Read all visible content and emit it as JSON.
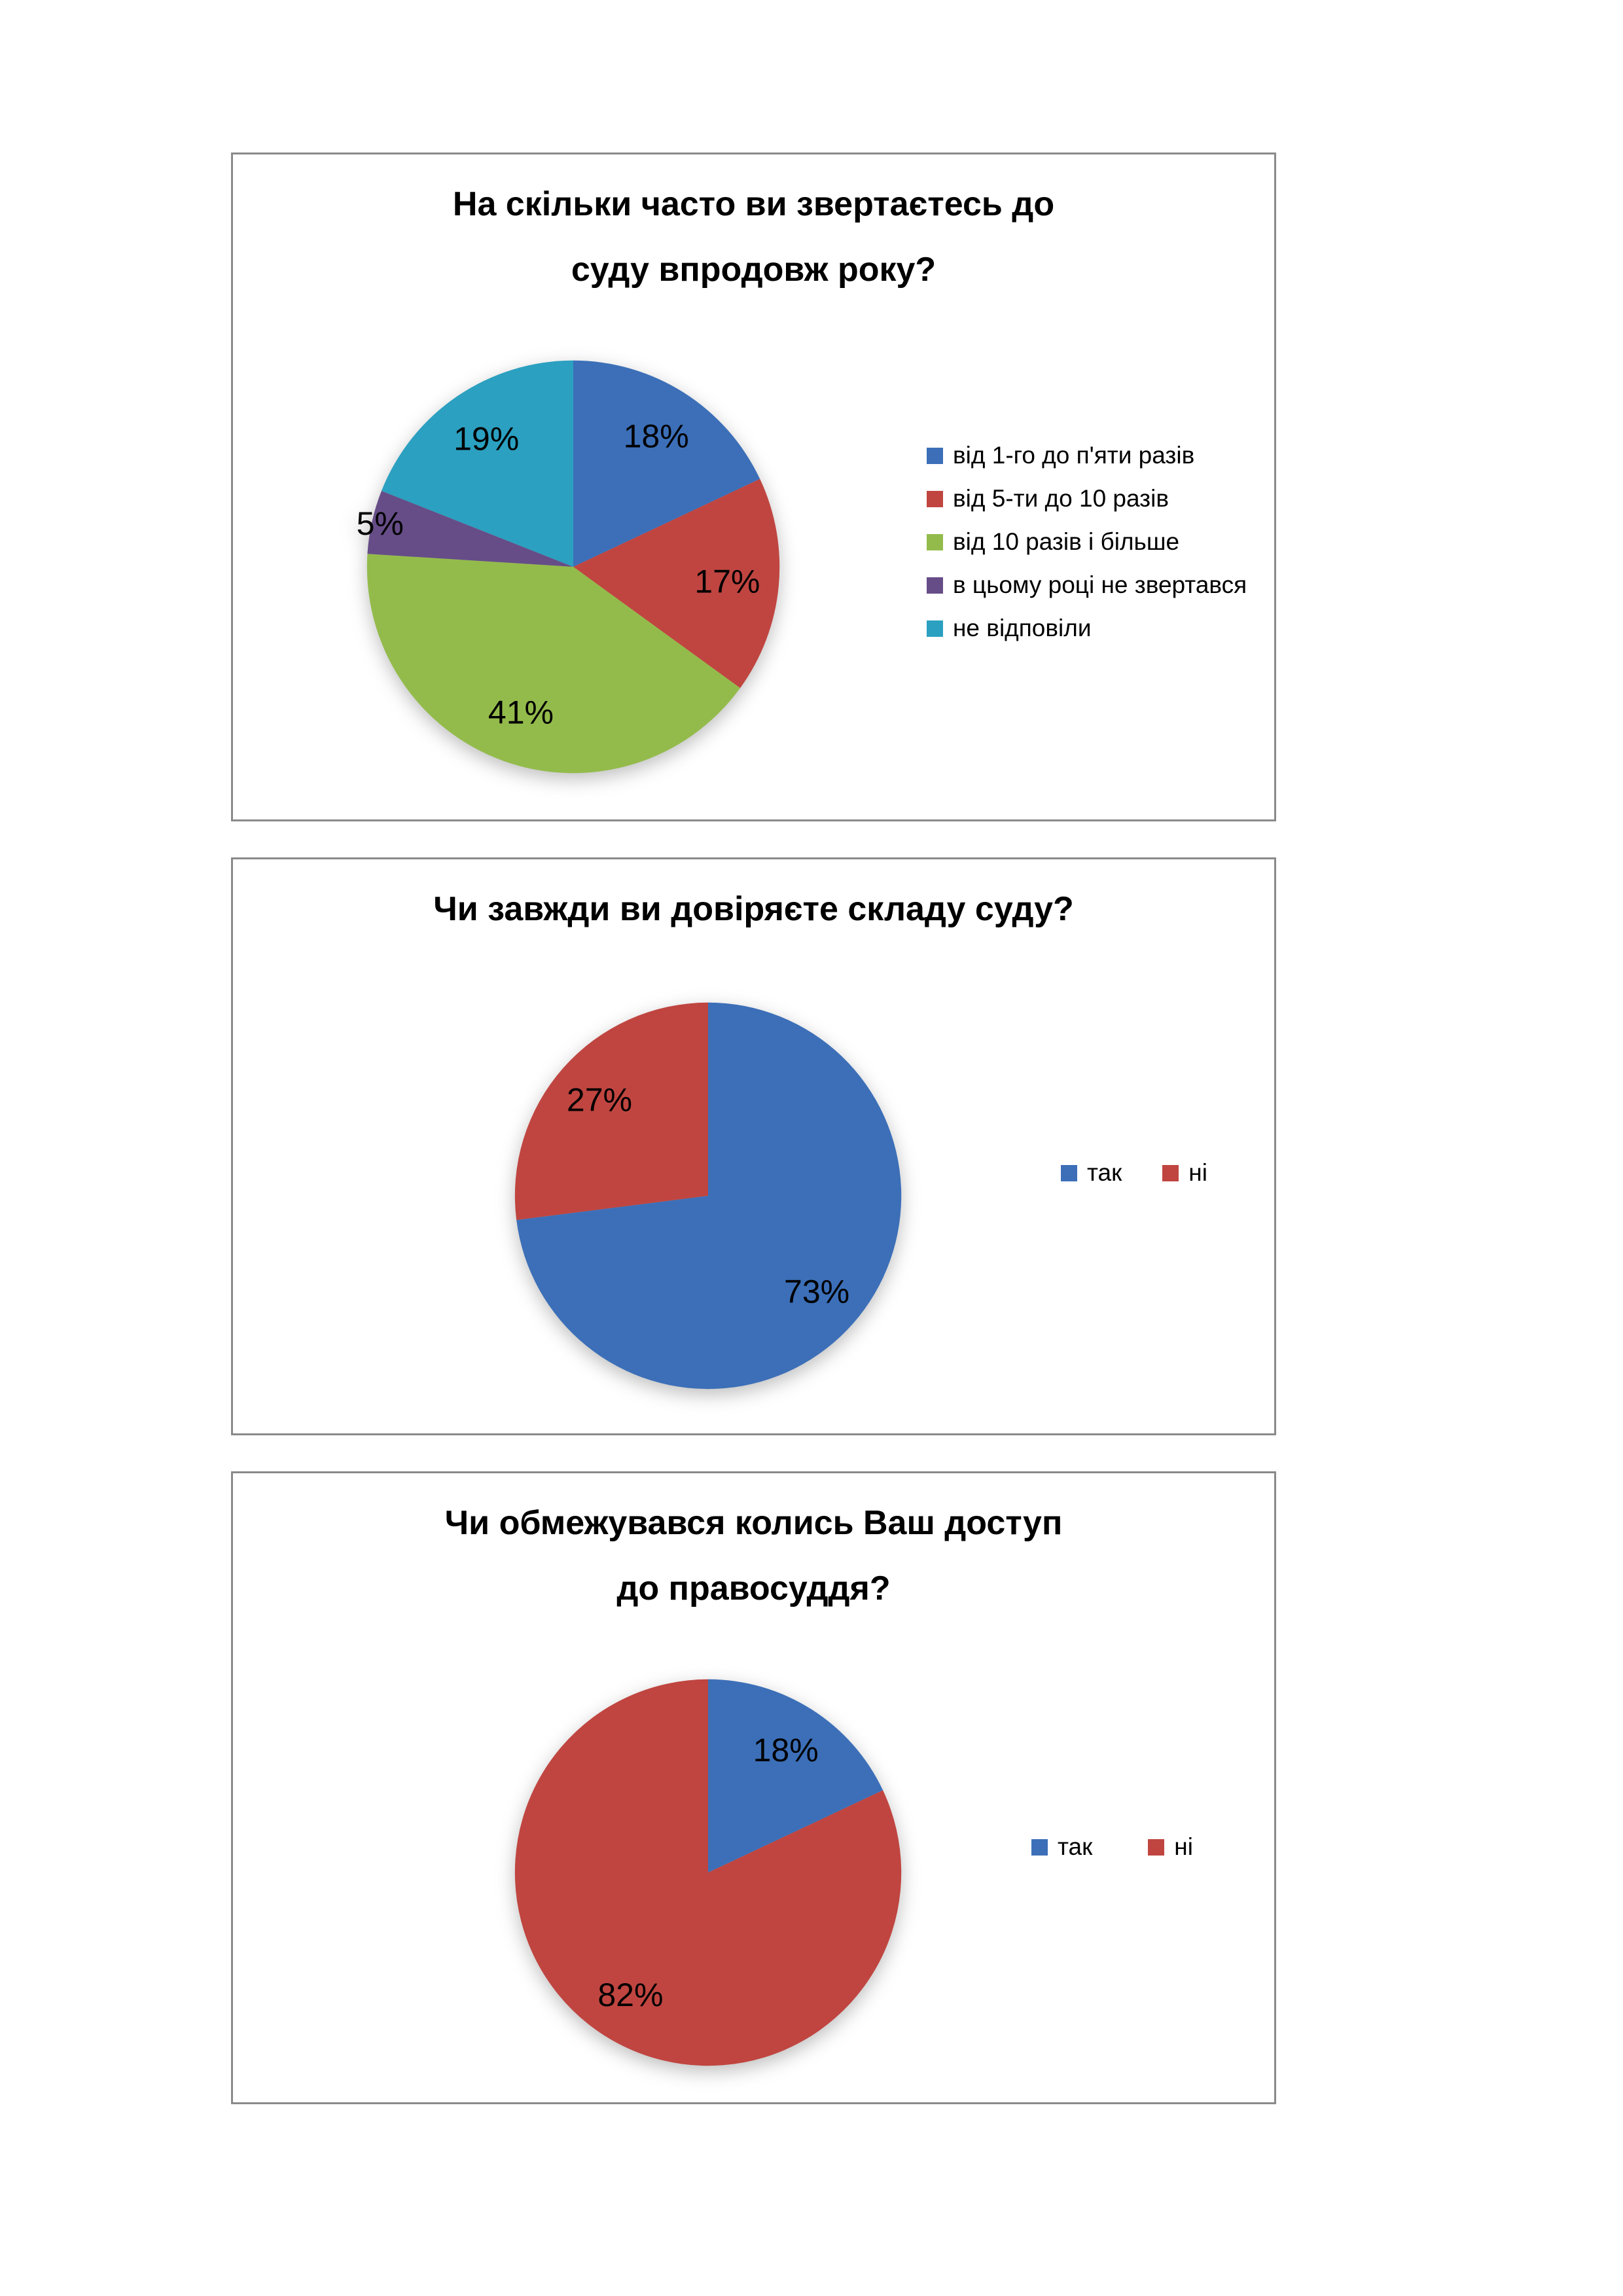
{
  "page": {
    "background": "#ffffff",
    "box_border_color": "#8a8a8a"
  },
  "chart_data": [
    {
      "type": "pie",
      "title": "На скільки часто ви звертаєтесь до суду впродовж року?",
      "title_lines": [
        "На скільки часто ви звертаєтесь до",
        "суду впродовж року?"
      ],
      "labels": [
        "від 1-го до п'яти разів",
        "від 5-ти до 10 разів",
        "від 10 разів і більше",
        "в цьому році не звертався",
        "не відповіли"
      ],
      "values": [
        18,
        17,
        41,
        5,
        19
      ],
      "data_labels": [
        "18%",
        "17%",
        "41%",
        "5%",
        "19%"
      ],
      "colors": [
        "#3c6fb8",
        "#c04540",
        "#93bb4b",
        "#664d87",
        "#2ba0c0"
      ],
      "unit": "%",
      "start_angle_deg": 0,
      "direction": "clockwise",
      "legend_position": "right",
      "legend_layout": "vertical"
    },
    {
      "type": "pie",
      "title": "Чи завжди ви довіряєте складу суду?",
      "title_lines": [
        "Чи завжди ви довіряєте складу суду?"
      ],
      "labels": [
        "так",
        "ні"
      ],
      "values": [
        73,
        27
      ],
      "data_labels": [
        "73%",
        "27%"
      ],
      "colors": [
        "#3c6fb8",
        "#c04540"
      ],
      "unit": "%",
      "start_angle_deg": 0,
      "direction": "clockwise",
      "legend_position": "right",
      "legend_layout": "horizontal"
    },
    {
      "type": "pie",
      "title": "Чи обмежувався колись Ваш доступ до правосуддя?",
      "title_lines": [
        "Чи обмежувався колись Ваш доступ",
        "до правосуддя?"
      ],
      "labels": [
        "так",
        "ні"
      ],
      "values": [
        18,
        82
      ],
      "data_labels": [
        "18%",
        "82%"
      ],
      "colors": [
        "#3c6fb8",
        "#c04540"
      ],
      "unit": "%",
      "start_angle_deg": 0,
      "direction": "clockwise",
      "legend_position": "right",
      "legend_layout": "horizontal"
    }
  ]
}
